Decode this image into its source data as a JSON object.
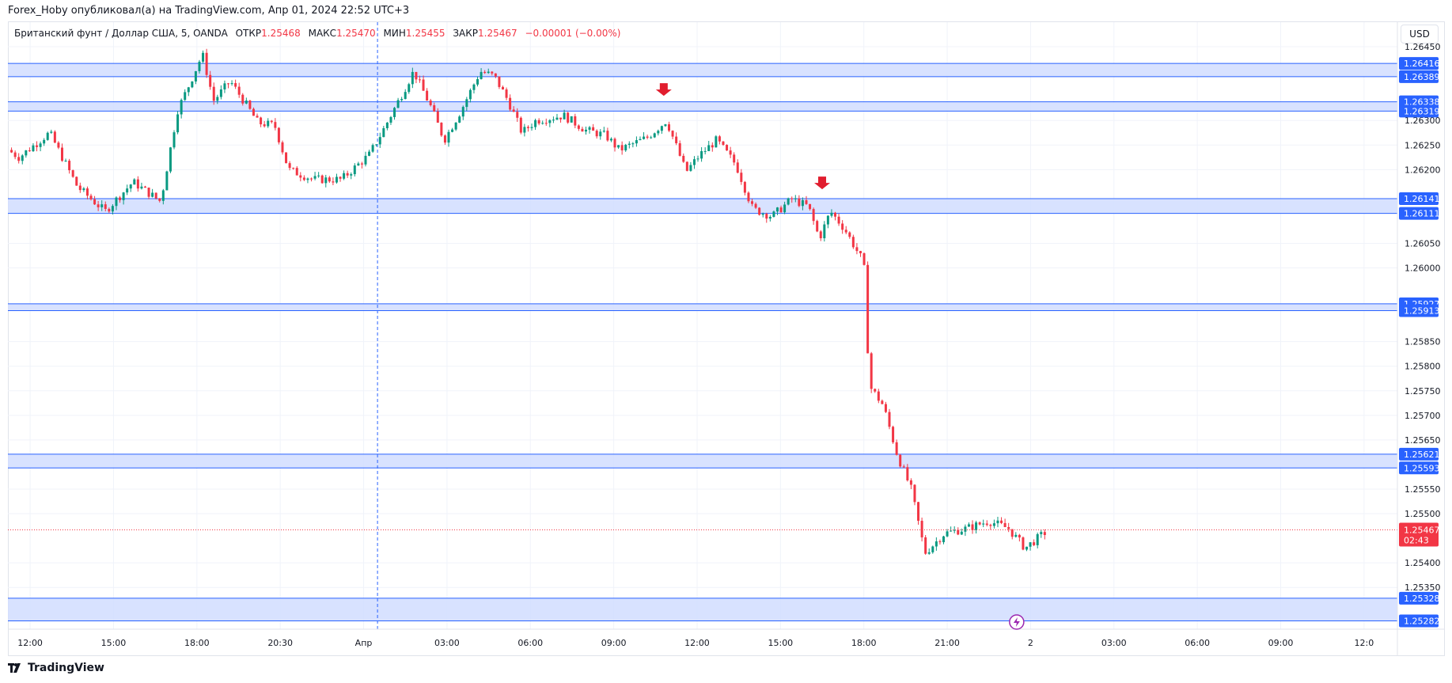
{
  "header": {
    "published_by": "Forex_Hoby опубликовал(а) на TradingView.com, Апр 01, 2024 22:52 UTC+3"
  },
  "legend": {
    "symbol": "Британский фунт / Доллар США, 5, OANDA",
    "open_label": "ОТКР",
    "open_value": "1.25468",
    "high_label": "МАКС",
    "high_value": "1.25470",
    "low_label": "МИН",
    "low_value": "1.25455",
    "close_label": "ЗАКР",
    "close_value": "1.25467",
    "change": "−0.00001 (−0.00%)"
  },
  "currency_button": "USD",
  "footer": {
    "brand": "TradingView"
  },
  "colors": {
    "up": "#089981",
    "down": "#f23645",
    "zone_fill": "#d1ddff",
    "zone_line": "#2962ff",
    "grid": "#f0f3fa",
    "price_tag": "#f23645",
    "label_bg": "#2962ff"
  },
  "icons": [
    "arrow-down-icon",
    "lightning-icon",
    "tradingview-logo-icon"
  ],
  "chart_data": {
    "type": "candlestick",
    "timeframe": "5",
    "x_ticks": [
      "12:00",
      "15:00",
      "18:00",
      "20:30",
      "Апр",
      "03:00",
      "06:00",
      "09:00",
      "12:00",
      "15:00",
      "18:00",
      "21:00",
      "2",
      "03:00",
      "06:00",
      "09:00",
      "12:0"
    ],
    "y_ticks": [
      "1.26450",
      "1.26300",
      "1.26250",
      "1.26200",
      "1.26050",
      "1.26000",
      "1.25850",
      "1.25800",
      "1.25750",
      "1.25700",
      "1.25650",
      "1.25550",
      "1.25500",
      "1.25400",
      "1.25350"
    ],
    "ylim": [
      1.25265,
      1.265
    ],
    "last_price": "1.25467",
    "countdown": "02:43",
    "zones": [
      {
        "top": "1.26416",
        "bottom": "1.26389"
      },
      {
        "top": "1.26338",
        "bottom": "1.26319"
      },
      {
        "top": "1.26141",
        "bottom": "1.26111"
      },
      {
        "top": "1.25927",
        "bottom": "1.25913"
      },
      {
        "top": "1.25621",
        "bottom": "1.25593"
      },
      {
        "top": "1.25328",
        "bottom": "1.25282"
      }
    ],
    "price_path": [
      {
        "t": 0,
        "p": 1.2624
      },
      {
        "t": 0.4,
        "p": 1.26225
      },
      {
        "t": 1.5,
        "p": 1.26275
      },
      {
        "t": 2.5,
        "p": 1.26165
      },
      {
        "t": 3.5,
        "p": 1.26115
      },
      {
        "t": 4.5,
        "p": 1.26175
      },
      {
        "t": 5.5,
        "p": 1.26135
      },
      {
        "t": 6.1,
        "p": 1.2632
      },
      {
        "t": 6.5,
        "p": 1.2637
      },
      {
        "t": 7.0,
        "p": 1.26435
      },
      {
        "t": 7.4,
        "p": 1.2634
      },
      {
        "t": 8.0,
        "p": 1.2638
      },
      {
        "t": 8.6,
        "p": 1.2633
      },
      {
        "t": 9.0,
        "p": 1.26295
      },
      {
        "t": 9.6,
        "p": 1.2629
      },
      {
        "t": 10.1,
        "p": 1.262
      },
      {
        "t": 11.0,
        "p": 1.2618
      },
      {
        "t": 12.0,
        "p": 1.2618
      },
      {
        "t": 13.0,
        "p": 1.2623
      },
      {
        "t": 13.5,
        "p": 1.2628
      },
      {
        "t": 14.1,
        "p": 1.26345
      },
      {
        "t": 14.6,
        "p": 1.264
      },
      {
        "t": 15.2,
        "p": 1.2633
      },
      {
        "t": 15.7,
        "p": 1.2626
      },
      {
        "t": 16.3,
        "p": 1.2632
      },
      {
        "t": 17.0,
        "p": 1.264
      },
      {
        "t": 17.5,
        "p": 1.2639
      },
      {
        "t": 18.0,
        "p": 1.2634
      },
      {
        "t": 18.5,
        "p": 1.26275
      },
      {
        "t": 19.0,
        "p": 1.263
      },
      {
        "t": 20.0,
        "p": 1.2631
      },
      {
        "t": 20.8,
        "p": 1.2628
      },
      {
        "t": 21.5,
        "p": 1.2627
      },
      {
        "t": 22.0,
        "p": 1.2624
      },
      {
        "t": 23.0,
        "p": 1.26265
      },
      {
        "t": 23.7,
        "p": 1.263
      },
      {
        "t": 24.4,
        "p": 1.26195
      },
      {
        "t": 24.9,
        "p": 1.2623
      },
      {
        "t": 25.5,
        "p": 1.2626
      },
      {
        "t": 26.2,
        "p": 1.2621
      },
      {
        "t": 26.8,
        "p": 1.2612
      },
      {
        "t": 27.5,
        "p": 1.26105
      },
      {
        "t": 28.2,
        "p": 1.2614
      },
      {
        "t": 28.8,
        "p": 1.26125
      },
      {
        "t": 29.2,
        "p": 1.2606
      },
      {
        "t": 29.6,
        "p": 1.26115
      },
      {
        "t": 30.1,
        "p": 1.2608
      },
      {
        "t": 30.6,
        "p": 1.2603
      },
      {
        "t": 30.8,
        "p": 1.2601
      },
      {
        "t": 31.0,
        "p": 1.2576
      },
      {
        "t": 31.5,
        "p": 1.2572
      },
      {
        "t": 32.0,
        "p": 1.2562
      },
      {
        "t": 32.5,
        "p": 1.2555
      },
      {
        "t": 33.0,
        "p": 1.2542
      },
      {
        "t": 33.7,
        "p": 1.2546
      },
      {
        "t": 34.5,
        "p": 1.2547
      },
      {
        "t": 35.3,
        "p": 1.25485
      },
      {
        "t": 36.0,
        "p": 1.2547
      },
      {
        "t": 36.6,
        "p": 1.2543
      },
      {
        "t": 37.4,
        "p": 1.25465
      }
    ],
    "annotations": [
      {
        "type": "arrow-down",
        "t": 23.6,
        "p": 1.2635
      },
      {
        "type": "arrow-down",
        "t": 29.3,
        "p": 1.2616
      }
    ],
    "vertical_marker_t": 13.3
  }
}
